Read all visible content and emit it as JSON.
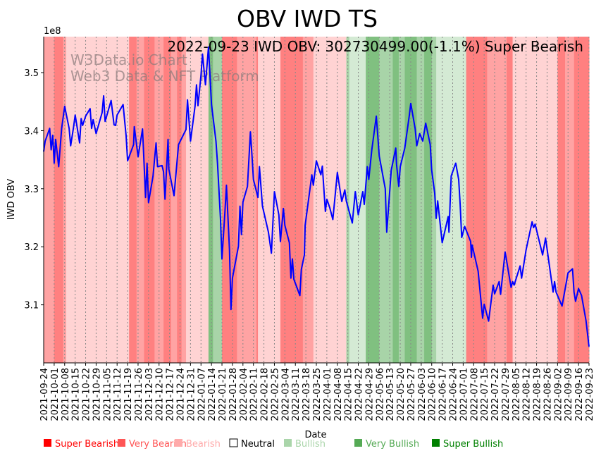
{
  "chart_data": {
    "type": "line",
    "title": "OBV IWD TS",
    "annotation": "2022-09-23 IWD OBV: 302730499.00(-1.1%) Super Bearish",
    "watermark": [
      "W3Data.io Chart",
      "Web3 Data & NFT Platform"
    ],
    "xlabel": "Date",
    "ylabel": "IWD OBV",
    "y_offset_label": "1e8",
    "ylim": [
      3.0,
      3.562
    ],
    "xlim_days": [
      0,
      364
    ],
    "grid": "vertical dotted at weekly ticks",
    "y_ticks": [
      "3.1",
      "3.2",
      "3.3",
      "3.4",
      "3.5"
    ],
    "x_tick_step_days": 7,
    "x_ticks": [
      "2021-09-24",
      "2021-10-01",
      "2021-10-08",
      "2021-10-15",
      "2021-10-22",
      "2021-10-29",
      "2021-11-05",
      "2021-11-12",
      "2021-11-19",
      "2021-11-26",
      "2021-12-03",
      "2021-12-10",
      "2021-12-17",
      "2021-12-24",
      "2021-12-31",
      "2022-01-07",
      "2022-01-14",
      "2022-01-21",
      "2022-01-28",
      "2022-02-04",
      "2022-02-11",
      "2022-02-18",
      "2022-02-25",
      "2022-03-04",
      "2022-03-11",
      "2022-03-18",
      "2022-03-25",
      "2022-04-01",
      "2022-04-08",
      "2022-04-15",
      "2022-04-22",
      "2022-04-29",
      "2022-05-06",
      "2022-05-13",
      "2022-05-20",
      "2022-05-27",
      "2022-06-03",
      "2022-06-10",
      "2022-06-17",
      "2022-06-24",
      "2022-07-01",
      "2022-07-08",
      "2022-07-15",
      "2022-07-22",
      "2022-07-29",
      "2022-08-05",
      "2022-08-12",
      "2022-08-19",
      "2022-08-26",
      "2022-09-02",
      "2022-09-09",
      "2022-09-16",
      "2022-09-23"
    ],
    "series": [
      {
        "name": "IWD OBV (1e8)",
        "color": "#0000ff",
        "points": [
          [
            0,
            3.364
          ],
          [
            1,
            3.382
          ],
          [
            4,
            3.404
          ],
          [
            5,
            3.367
          ],
          [
            6,
            3.392
          ],
          [
            7,
            3.344
          ],
          [
            8,
            3.385
          ],
          [
            10,
            3.338
          ],
          [
            12,
            3.404
          ],
          [
            14,
            3.442
          ],
          [
            17,
            3.404
          ],
          [
            18,
            3.374
          ],
          [
            20,
            3.407
          ],
          [
            21,
            3.427
          ],
          [
            24,
            3.379
          ],
          [
            25,
            3.421
          ],
          [
            26,
            3.409
          ],
          [
            28,
            3.425
          ],
          [
            31,
            3.438
          ],
          [
            32,
            3.404
          ],
          [
            33,
            3.419
          ],
          [
            35,
            3.395
          ],
          [
            39,
            3.431
          ],
          [
            40,
            3.46
          ],
          [
            41,
            3.416
          ],
          [
            45,
            3.452
          ],
          [
            47,
            3.41
          ],
          [
            48,
            3.409
          ],
          [
            49,
            3.427
          ],
          [
            53,
            3.445
          ],
          [
            55,
            3.391
          ],
          [
            56,
            3.348
          ],
          [
            60,
            3.376
          ],
          [
            60.5,
            3.407
          ],
          [
            63,
            3.355
          ],
          [
            66,
            3.403
          ],
          [
            68,
            3.285
          ],
          [
            69,
            3.344
          ],
          [
            70,
            3.276
          ],
          [
            73,
            3.322
          ],
          [
            75,
            3.379
          ],
          [
            76,
            3.338
          ],
          [
            79,
            3.34
          ],
          [
            80,
            3.329
          ],
          [
            81,
            3.282
          ],
          [
            83,
            3.385
          ],
          [
            83.5,
            3.334
          ],
          [
            87,
            3.288
          ],
          [
            90,
            3.376
          ],
          [
            95,
            3.402
          ],
          [
            96,
            3.453
          ],
          [
            98,
            3.382
          ],
          [
            101,
            3.442
          ],
          [
            102,
            3.479
          ],
          [
            103,
            3.443
          ],
          [
            105,
            3.496
          ],
          [
            106,
            3.532
          ],
          [
            108,
            3.479
          ],
          [
            110,
            3.544
          ],
          [
            112,
            3.445
          ],
          [
            115,
            3.382
          ],
          [
            116,
            3.344
          ],
          [
            118,
            3.249
          ],
          [
            119,
            3.179
          ],
          [
            121,
            3.261
          ],
          [
            122,
            3.306
          ],
          [
            124,
            3.195
          ],
          [
            125,
            3.092
          ],
          [
            126,
            3.146
          ],
          [
            130,
            3.201
          ],
          [
            131,
            3.27
          ],
          [
            132,
            3.221
          ],
          [
            133,
            3.277
          ],
          [
            136,
            3.304
          ],
          [
            138,
            3.398
          ],
          [
            139,
            3.358
          ],
          [
            140,
            3.316
          ],
          [
            143,
            3.285
          ],
          [
            144,
            3.338
          ],
          [
            146,
            3.27
          ],
          [
            150,
            3.225
          ],
          [
            152,
            3.189
          ],
          [
            154,
            3.295
          ],
          [
            157,
            3.255
          ],
          [
            158,
            3.209
          ],
          [
            160,
            3.266
          ],
          [
            161,
            3.237
          ],
          [
            164,
            3.207
          ],
          [
            165,
            3.146
          ],
          [
            166,
            3.179
          ],
          [
            167,
            3.144
          ],
          [
            171,
            3.116
          ],
          [
            172,
            3.161
          ],
          [
            174,
            3.186
          ],
          [
            174.5,
            3.237
          ],
          [
            179,
            3.324
          ],
          [
            180,
            3.306
          ],
          [
            182,
            3.348
          ],
          [
            185,
            3.324
          ],
          [
            186,
            3.339
          ],
          [
            188,
            3.261
          ],
          [
            189,
            3.282
          ],
          [
            191,
            3.267
          ],
          [
            193,
            3.247
          ],
          [
            196,
            3.328
          ],
          [
            199,
            3.278
          ],
          [
            201,
            3.298
          ],
          [
            202,
            3.279
          ],
          [
            206,
            3.241
          ],
          [
            208,
            3.295
          ],
          [
            210,
            3.255
          ],
          [
            213,
            3.295
          ],
          [
            214,
            3.273
          ],
          [
            216,
            3.338
          ],
          [
            217,
            3.316
          ],
          [
            219,
            3.367
          ],
          [
            222,
            3.425
          ],
          [
            224,
            3.356
          ],
          [
            228,
            3.3
          ],
          [
            229,
            3.225
          ],
          [
            232,
            3.332
          ],
          [
            235,
            3.37
          ],
          [
            235.5,
            3.342
          ],
          [
            237,
            3.304
          ],
          [
            238,
            3.338
          ],
          [
            241,
            3.37
          ],
          [
            244,
            3.425
          ],
          [
            245,
            3.447
          ],
          [
            248,
            3.403
          ],
          [
            249,
            3.374
          ],
          [
            251,
            3.395
          ],
          [
            253,
            3.382
          ],
          [
            255,
            3.413
          ],
          [
            258,
            3.376
          ],
          [
            259,
            3.332
          ],
          [
            261,
            3.292
          ],
          [
            262,
            3.249
          ],
          [
            263,
            3.279
          ],
          [
            266,
            3.207
          ],
          [
            270,
            3.252
          ],
          [
            270.5,
            3.225
          ],
          [
            272,
            3.322
          ],
          [
            275,
            3.344
          ],
          [
            277,
            3.316
          ],
          [
            278,
            3.273
          ],
          [
            279,
            3.216
          ],
          [
            281,
            3.235
          ],
          [
            285,
            3.209
          ],
          [
            285.5,
            3.182
          ],
          [
            286,
            3.203
          ],
          [
            290,
            3.158
          ],
          [
            293,
            3.077
          ],
          [
            294,
            3.101
          ],
          [
            297,
            3.072
          ],
          [
            300,
            3.134
          ],
          [
            301,
            3.119
          ],
          [
            304,
            3.14
          ],
          [
            305,
            3.118
          ],
          [
            308,
            3.191
          ],
          [
            312,
            3.13
          ],
          [
            313,
            3.14
          ],
          [
            314,
            3.134
          ],
          [
            318,
            3.167
          ],
          [
            319,
            3.146
          ],
          [
            322,
            3.195
          ],
          [
            326,
            3.243
          ],
          [
            327,
            3.233
          ],
          [
            328,
            3.239
          ],
          [
            333,
            3.186
          ],
          [
            335,
            3.215
          ],
          [
            340,
            3.122
          ],
          [
            341,
            3.14
          ],
          [
            342,
            3.122
          ],
          [
            346,
            3.098
          ],
          [
            350,
            3.155
          ],
          [
            353,
            3.162
          ],
          [
            354,
            3.122
          ],
          [
            355,
            3.106
          ],
          [
            357,
            3.128
          ],
          [
            359,
            3.116
          ],
          [
            362,
            3.073
          ],
          [
            364,
            3.028
          ]
        ]
      }
    ],
    "regime_bands": [
      [
        0,
        7,
        "very_bearish"
      ],
      [
        7,
        13,
        "super_bearish"
      ],
      [
        13,
        15,
        "very_bearish"
      ],
      [
        15,
        57,
        "bearish"
      ],
      [
        57,
        62,
        "super_bearish"
      ],
      [
        62,
        67,
        "very_bearish"
      ],
      [
        67,
        74,
        "super_bearish"
      ],
      [
        74,
        80,
        "very_bearish"
      ],
      [
        80,
        85,
        "super_bearish"
      ],
      [
        85,
        89,
        "very_bearish"
      ],
      [
        89,
        92,
        "super_bearish"
      ],
      [
        92,
        95,
        "very_bearish"
      ],
      [
        95,
        110,
        "bearish"
      ],
      [
        110,
        113,
        "super_bullish"
      ],
      [
        113,
        119,
        "very_bullish"
      ],
      [
        119,
        129,
        "super_bearish"
      ],
      [
        129,
        142,
        "very_bearish"
      ],
      [
        142,
        143,
        "super_bearish"
      ],
      [
        143,
        158,
        "bearish"
      ],
      [
        158,
        173,
        "super_bearish"
      ],
      [
        173,
        180,
        "very_bearish"
      ],
      [
        180,
        202,
        "bearish"
      ],
      [
        202,
        204,
        "very_bullish"
      ],
      [
        204,
        215,
        "bullish"
      ],
      [
        215,
        224,
        "super_bullish"
      ],
      [
        224,
        233,
        "very_bullish"
      ],
      [
        233,
        237,
        "super_bullish"
      ],
      [
        237,
        241,
        "very_bullish"
      ],
      [
        241,
        249,
        "super_bullish"
      ],
      [
        249,
        254,
        "very_bullish"
      ],
      [
        254,
        259,
        "super_bullish"
      ],
      [
        259,
        262,
        "very_bullish"
      ],
      [
        262,
        282,
        "bullish"
      ],
      [
        282,
        296,
        "super_bearish"
      ],
      [
        296,
        309,
        "very_bearish"
      ],
      [
        309,
        313,
        "super_bearish"
      ],
      [
        313,
        343,
        "bearish"
      ],
      [
        343,
        348,
        "super_bearish"
      ],
      [
        348,
        354,
        "very_bearish"
      ],
      [
        354,
        364,
        "super_bearish"
      ]
    ],
    "band_colors": {
      "super_bearish": "#ff8080",
      "very_bearish": "#ffa3a3",
      "bearish": "#ffd3d3",
      "neutral": "#ffffff",
      "bullish": "#d4ead4",
      "very_bullish": "#a8d4a8",
      "super_bullish": "#80c080"
    },
    "legend": [
      {
        "key": "super_bearish",
        "label": "Super Bearish",
        "color": "#ff0000"
      },
      {
        "key": "very_bearish",
        "label": "Very Bearish",
        "color": "#ff5555"
      },
      {
        "key": "bearish",
        "label": "Bearish",
        "color": "#ffaaaa"
      },
      {
        "key": "neutral",
        "label": "Neutral",
        "color": "#000000"
      },
      {
        "key": "bullish",
        "label": "Bullish",
        "color": "#aad5aa"
      },
      {
        "key": "very_bullish",
        "label": "Very Bullish",
        "color": "#55aa55"
      },
      {
        "key": "super_bullish",
        "label": "Super Bullish",
        "color": "#008000"
      }
    ],
    "legend_placement": "bottom"
  }
}
